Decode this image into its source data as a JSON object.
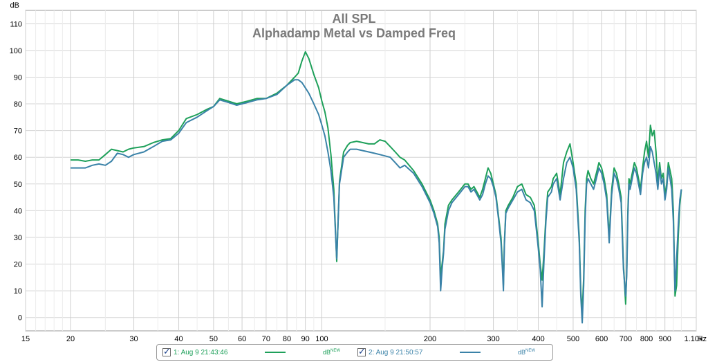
{
  "chart_data": {
    "type": "line",
    "title": "All SPL",
    "subtitle": "Alphadamp Metal vs Damped Freq",
    "ylabel": "dB",
    "xlabel_unit": "Hz",
    "xscale": "log",
    "xlim": [
      15,
      1100
    ],
    "ylim": [
      -5,
      115
    ],
    "grid": true,
    "y_ticks": [
      "0",
      "10",
      "20",
      "30",
      "40",
      "50",
      "60",
      "70",
      "80",
      "90",
      "100",
      "110"
    ],
    "y_tick_values": [
      0,
      10,
      20,
      30,
      40,
      50,
      60,
      70,
      80,
      90,
      100,
      110
    ],
    "x_ticks": [
      "15",
      "20",
      "30",
      "40",
      "50",
      "60",
      "70",
      "80",
      "90",
      "100",
      "200",
      "300",
      "400",
      "500",
      "600",
      "700",
      "800",
      "900",
      "1.10k"
    ],
    "x_tick_values": [
      15,
      20,
      30,
      40,
      50,
      60,
      70,
      80,
      90,
      100,
      200,
      300,
      400,
      500,
      600,
      700,
      800,
      900,
      1100
    ],
    "series": [
      {
        "name": "1: Aug 9 21:43:46",
        "unit": "dB",
        "unit_suffix": "NEW",
        "color": "#1ea05a",
        "x": [
          20,
          21,
          22,
          23,
          24,
          25,
          26,
          27,
          28,
          29,
          30,
          32,
          34,
          36,
          38,
          40,
          42,
          45,
          48,
          50,
          52,
          55,
          58,
          62,
          66,
          70,
          75,
          80,
          84,
          86,
          88,
          90,
          92,
          95,
          98,
          100,
          102,
          104,
          106,
          108,
          110,
          112,
          115,
          118,
          120,
          125,
          130,
          135,
          140,
          145,
          150,
          155,
          160,
          165,
          170,
          180,
          190,
          200,
          205,
          210,
          212,
          214,
          216,
          218,
          220,
          225,
          230,
          240,
          250,
          255,
          260,
          265,
          270,
          275,
          280,
          285,
          290,
          295,
          300,
          305,
          310,
          315,
          318,
          320,
          322,
          325,
          330,
          340,
          350,
          360,
          370,
          380,
          390,
          395,
          400,
          405,
          410,
          415,
          420,
          425,
          430,
          435,
          440,
          450,
          460,
          470,
          480,
          490,
          500,
          510,
          515,
          520,
          525,
          530,
          535,
          540,
          545,
          550,
          560,
          570,
          580,
          590,
          600,
          610,
          620,
          630,
          640,
          650,
          660,
          670,
          680,
          690,
          700,
          705,
          710,
          715,
          720,
          730,
          740,
          750,
          760,
          770,
          780,
          790,
          800,
          810,
          820,
          830,
          840,
          850,
          860,
          870,
          880,
          890,
          900,
          910,
          920,
          930,
          940,
          950,
          960,
          970,
          980,
          990,
          1000
        ],
        "y": [
          59,
          59,
          58.5,
          59,
          59,
          61,
          63,
          62.5,
          62,
          63,
          63.5,
          64,
          65.5,
          66.5,
          67,
          70,
          74.5,
          76,
          78,
          79,
          82,
          81,
          80,
          81,
          82,
          82,
          84,
          87,
          90,
          91.5,
          96,
          99.5,
          97,
          91,
          86,
          81,
          77,
          71,
          61,
          48,
          21,
          51,
          62,
          64.5,
          65.5,
          66,
          65.5,
          65,
          65,
          66.5,
          66,
          64,
          62,
          60,
          59,
          55,
          50,
          44,
          40,
          35,
          30,
          15,
          20,
          25,
          35,
          42,
          44,
          47,
          50,
          50,
          48,
          49,
          47,
          45,
          48,
          52,
          56,
          54,
          50,
          46,
          38,
          30,
          20,
          12,
          28,
          40,
          42,
          45,
          49,
          50,
          46,
          45,
          42,
          35,
          28,
          20,
          14,
          25,
          38,
          47,
          48,
          49,
          52,
          54,
          46,
          58,
          62,
          65,
          58,
          50,
          40,
          30,
          10,
          2,
          15,
          40,
          52,
          55,
          52,
          50,
          54,
          58,
          56,
          52,
          46,
          30,
          48,
          56,
          54,
          50,
          45,
          20,
          5,
          18,
          40,
          52,
          50,
          54,
          58,
          56,
          52,
          48,
          56,
          62,
          66,
          60,
          72,
          68,
          70,
          62,
          50,
          58,
          52,
          54,
          46,
          50,
          58,
          55,
          52,
          40,
          8,
          12,
          30,
          42,
          48
        ],
        "legend_pos": "bottom"
      },
      {
        "name": "2: Aug 9 21:50:57",
        "unit": "dB",
        "unit_suffix": "NEW",
        "color": "#3a82a8",
        "x": [
          20,
          21,
          22,
          23,
          24,
          25,
          26,
          27,
          28,
          29,
          30,
          32,
          34,
          36,
          38,
          40,
          42,
          45,
          48,
          50,
          52,
          55,
          58,
          62,
          66,
          70,
          75,
          80,
          84,
          86,
          88,
          90,
          92,
          95,
          98,
          100,
          102,
          104,
          106,
          108,
          110,
          112,
          115,
          118,
          120,
          125,
          130,
          135,
          140,
          145,
          150,
          155,
          160,
          165,
          170,
          180,
          190,
          200,
          205,
          210,
          212,
          214,
          216,
          218,
          220,
          225,
          230,
          240,
          250,
          255,
          260,
          265,
          270,
          275,
          280,
          285,
          290,
          295,
          300,
          305,
          310,
          315,
          318,
          320,
          322,
          325,
          330,
          340,
          350,
          360,
          370,
          380,
          390,
          395,
          400,
          405,
          410,
          415,
          420,
          425,
          430,
          435,
          440,
          450,
          460,
          470,
          480,
          490,
          500,
          510,
          515,
          520,
          525,
          530,
          535,
          540,
          545,
          550,
          560,
          570,
          580,
          590,
          600,
          610,
          620,
          630,
          640,
          650,
          660,
          670,
          680,
          690,
          700,
          705,
          710,
          715,
          720,
          730,
          740,
          750,
          760,
          770,
          780,
          790,
          800,
          810,
          820,
          830,
          840,
          850,
          860,
          870,
          880,
          890,
          900,
          910,
          920,
          930,
          940,
          950,
          960,
          970,
          980,
          990,
          1000
        ],
        "y": [
          56,
          56,
          56,
          57,
          57.5,
          57,
          58.5,
          61.5,
          61,
          60,
          61,
          62,
          64,
          66,
          66.5,
          69,
          73,
          75,
          77.5,
          79,
          81.5,
          80.5,
          79.5,
          80.5,
          81.5,
          82,
          83.5,
          87,
          89,
          89,
          88,
          86,
          84,
          80,
          76,
          72,
          68,
          62,
          55,
          45,
          22,
          50,
          60,
          62,
          63,
          63,
          62.5,
          62,
          61.5,
          61,
          60.5,
          60,
          58,
          56,
          57,
          54,
          49,
          43,
          39,
          34,
          28,
          10,
          18,
          24,
          33,
          40,
          43,
          46,
          49,
          49,
          47,
          48,
          46,
          44,
          46,
          50,
          53,
          52,
          49,
          45,
          37,
          28,
          18,
          10,
          27,
          39,
          41,
          44,
          47,
          48,
          44,
          43,
          40,
          33,
          26,
          18,
          4,
          22,
          36,
          45,
          46,
          47,
          50,
          52,
          44,
          52,
          58,
          60,
          56,
          48,
          38,
          28,
          8,
          -2,
          12,
          37,
          50,
          52,
          50,
          48,
          52,
          56,
          54,
          50,
          44,
          28,
          46,
          54,
          52,
          48,
          43,
          18,
          8,
          16,
          38,
          50,
          48,
          52,
          56,
          54,
          50,
          46,
          54,
          58,
          60,
          56,
          64,
          62,
          58,
          54,
          48,
          56,
          50,
          52,
          44,
          48,
          56,
          52,
          48,
          36,
          10,
          22,
          34,
          44,
          48
        ],
        "legend_pos": "bottom"
      }
    ]
  }
}
